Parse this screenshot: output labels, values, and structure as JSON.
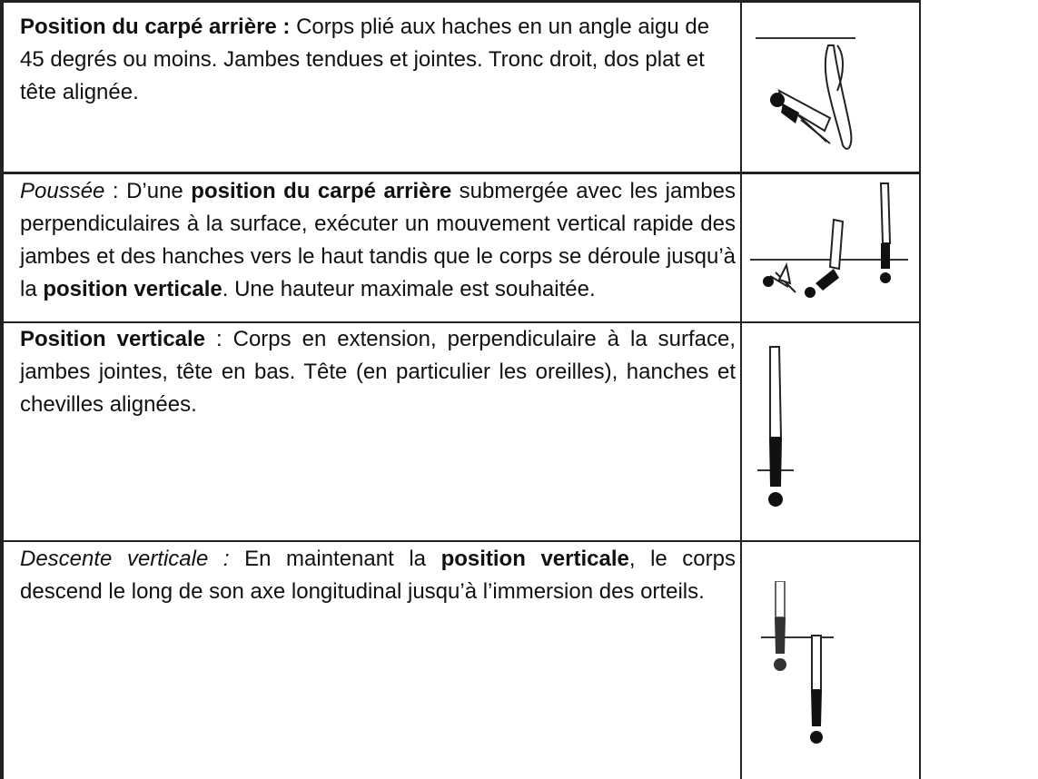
{
  "rows": [
    {
      "segments": [
        {
          "text": "Position du carpé arrière :",
          "bold": true
        },
        {
          "text": " Corps plié aux haches en un angle aigu de 45 degrés ou moins. Jambes tendues et jointes. Tronc droit, dos plat et tête alignée."
        }
      ]
    },
    {
      "segments": [
        {
          "text": "Poussée",
          "italic": true
        },
        {
          "text": " : D’une "
        },
        {
          "text": "position du carpé arrière",
          "bold": true
        },
        {
          "text": " submergée avec les jambes perpendiculaires à la surface, exécuter un mouvement vertical rapide des jambes et des hanches vers le haut tandis que le corps se déroule jusqu’à la "
        },
        {
          "text": "position verticale",
          "bold": true
        },
        {
          "text": ". Une hauteur maximale est souhaitée."
        }
      ]
    },
    {
      "segments": [
        {
          "text": "Position verticale",
          "bold": true
        },
        {
          "text": " : Corps en extension, perpendiculaire à la surface, jambes jointes, tête en bas. Tête (en particulier les oreilles), hanches et chevilles alignées."
        }
      ]
    },
    {
      "segments": [
        {
          "text": "Descente verticale :",
          "italic": true
        },
        {
          "text": " En maintenant la "
        },
        {
          "text": "position verticale",
          "bold": true
        },
        {
          "text": ", le corps descend le long de son axe longitudinal jusqu’à l’immersion des orteils."
        }
      ]
    }
  ]
}
